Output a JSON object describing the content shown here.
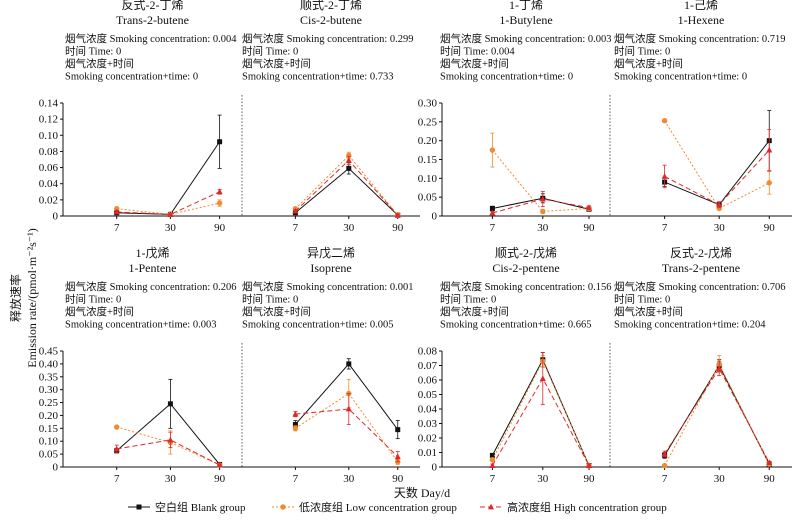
{
  "ylabel_cn": "释放速率",
  "ylabel_en": "Emission rate/(pmol·m⁻²s⁻¹)",
  "xlabel": "天数 Day/d",
  "legend": [
    {
      "label": "空白组 Blank group",
      "color": "#111111",
      "marker": "square",
      "dash": "none"
    },
    {
      "label": "低浓度组 Low concentration group",
      "color": "#f28a2e",
      "marker": "circle",
      "dash": "2,2"
    },
    {
      "label": "高浓度组 High concentration group",
      "color": "#e0282a",
      "marker": "triangle",
      "dash": "5,3"
    }
  ],
  "stats_labels": {
    "smoke": "烟气浓度 Smoking concentration:",
    "time": "时间 Time:",
    "inter_cn": "烟气浓度+时间",
    "inter_en": "Smoking concentration+time:"
  },
  "chart_data": [
    {
      "type": "line",
      "title_cn": "反式-2-丁烯",
      "title_en": "Trans-2-butene",
      "stats": {
        "smoke": "0.004",
        "time": "0",
        "inter": "0"
      },
      "categories": [
        "7",
        "30",
        "90"
      ],
      "ylim": [
        0,
        0.14
      ],
      "yticks": [
        "0",
        "0.02",
        "0.04",
        "0.06",
        "0.08",
        "0.10",
        "0.12",
        "0.14"
      ],
      "series": [
        {
          "name": "空白组 Blank group",
          "values": [
            0.004,
            0.002,
            0.092
          ],
          "err": [
            0.002,
            0.001,
            0.033
          ]
        },
        {
          "name": "低浓度组 Low concentration group",
          "values": [
            0.009,
            0.002,
            0.016
          ],
          "err": [
            0.002,
            0.001,
            0.004
          ]
        },
        {
          "name": "高浓度组 High concentration group",
          "values": [
            0.005,
            0.002,
            0.03
          ],
          "err": [
            0.002,
            0.001,
            0.003
          ]
        }
      ]
    },
    {
      "type": "line",
      "title_cn": "顺式-2-丁烯",
      "title_en": "Cis-2-butene",
      "stats": {
        "smoke": "0.299",
        "time": "0",
        "inter": "0.733"
      },
      "categories": [
        "7",
        "30",
        "90"
      ],
      "ylim": [
        0,
        0.14
      ],
      "series": [
        {
          "name": "空白组 Blank group",
          "values": [
            0.004,
            0.059,
            0.001
          ],
          "err": [
            0.002,
            0.007,
            0.001
          ]
        },
        {
          "name": "低浓度组 Low concentration group",
          "values": [
            0.009,
            0.075,
            0.001
          ],
          "err": [
            0.002,
            0.004,
            0.001
          ]
        },
        {
          "name": "高浓度组 High concentration group",
          "values": [
            0.006,
            0.069,
            0.001
          ],
          "err": [
            0.002,
            0.005,
            0.001
          ]
        }
      ]
    },
    {
      "type": "line",
      "title_cn": "1-丁烯",
      "title_en": "1-Butylene",
      "stats": {
        "smoke": "0.003",
        "time": "0.004",
        "inter": "0"
      },
      "categories": [
        "7",
        "30",
        "90"
      ],
      "ylim": [
        0,
        0.3
      ],
      "yticks": [
        "0",
        "0.05",
        "0.10",
        "0.15",
        "0.20",
        "0.25",
        "0.30"
      ],
      "series": [
        {
          "name": "空白组 Blank group",
          "values": [
            0.02,
            0.047,
            0.018
          ],
          "err": [
            0.006,
            0.012,
            0.005
          ]
        },
        {
          "name": "低浓度组 Low concentration group",
          "values": [
            0.175,
            0.012,
            0.02
          ],
          "err": [
            0.045,
            0.005,
            0.005
          ]
        },
        {
          "name": "高浓度组 High concentration group",
          "values": [
            0.008,
            0.045,
            0.022
          ],
          "err": [
            0.004,
            0.02,
            0.005
          ]
        }
      ]
    },
    {
      "type": "line",
      "title_cn": "1-己烯",
      "title_en": "1-Hexene",
      "stats": {
        "smoke": "0.719",
        "time": "0",
        "inter": "0"
      },
      "categories": [
        "7",
        "30",
        "90"
      ],
      "ylim": [
        0,
        0.3
      ],
      "series": [
        {
          "name": "空白组 Blank group",
          "values": [
            0.09,
            0.03,
            0.2
          ],
          "err": [
            0.012,
            0.005,
            0.08
          ]
        },
        {
          "name": "低浓度组 Low concentration group",
          "values": [
            0.253,
            0.02,
            0.088
          ],
          "err": [
            0.004,
            0.004,
            0.03
          ]
        },
        {
          "name": "高浓度组 High concentration group",
          "values": [
            0.105,
            0.03,
            0.175
          ],
          "err": [
            0.03,
            0.008,
            0.055
          ]
        }
      ]
    },
    {
      "type": "line",
      "title_cn": "1-戊烯",
      "title_en": "1-Pentene",
      "stats": {
        "smoke": "0.206",
        "time": "0",
        "inter": "0.003"
      },
      "categories": [
        "7",
        "30",
        "90"
      ],
      "ylim": [
        0,
        0.45
      ],
      "yticks": [
        "0",
        "0.05",
        "0.10",
        "0.15",
        "0.20",
        "0.25",
        "0.30",
        "0.35",
        "0.40",
        "0.45"
      ],
      "series": [
        {
          "name": "空白组 Blank group",
          "values": [
            0.063,
            0.245,
            0.01
          ],
          "err": [
            0.008,
            0.095,
            0.005
          ]
        },
        {
          "name": "低浓度组 Low concentration group",
          "values": [
            0.155,
            0.095,
            0.008
          ],
          "err": [
            0.005,
            0.045,
            0.003
          ]
        },
        {
          "name": "高浓度组 High concentration group",
          "values": [
            0.07,
            0.105,
            0.008
          ],
          "err": [
            0.015,
            0.03,
            0.003
          ]
        }
      ]
    },
    {
      "type": "line",
      "title_cn": "异戊二烯",
      "title_en": "Isoprene",
      "stats": {
        "smoke": "0.001",
        "time": "0",
        "inter": "0.005"
      },
      "categories": [
        "7",
        "30",
        "90"
      ],
      "ylim": [
        0,
        0.45
      ],
      "series": [
        {
          "name": "空白组 Blank group",
          "values": [
            0.165,
            0.4,
            0.145
          ],
          "err": [
            0.015,
            0.02,
            0.035
          ]
        },
        {
          "name": "低浓度组 Low concentration group",
          "values": [
            0.15,
            0.285,
            0.02
          ],
          "err": [
            0.01,
            0.055,
            0.01
          ]
        },
        {
          "name": "高浓度组 High concentration group",
          "values": [
            0.205,
            0.225,
            0.04
          ],
          "err": [
            0.01,
            0.06,
            0.02
          ]
        }
      ]
    },
    {
      "type": "line",
      "title_cn": "顺式-2-戊烯",
      "title_en": "Cis-2-pentene",
      "stats": {
        "smoke": "0.156",
        "time": "0",
        "inter": "0.665"
      },
      "categories": [
        "7",
        "30",
        "90"
      ],
      "ylim": [
        0,
        0.08
      ],
      "yticks": [
        "0",
        "0.01",
        "0.02",
        "0.03",
        "0.04",
        "0.05",
        "0.06",
        "0.07",
        "0.08"
      ],
      "series": [
        {
          "name": "空白组 Blank group",
          "values": [
            0.008,
            0.074,
            0.001
          ],
          "err": [
            0.001,
            0.005,
            0.0005
          ]
        },
        {
          "name": "低浓度组 Low concentration group",
          "values": [
            0.005,
            0.073,
            0.001
          ],
          "err": [
            0.001,
            0.004,
            0.0005
          ]
        },
        {
          "name": "高浓度组 High concentration group",
          "values": [
            0.001,
            0.061,
            0.001
          ],
          "err": [
            0.001,
            0.018,
            0.0005
          ]
        }
      ]
    },
    {
      "type": "line",
      "title_cn": "反式-2-戊烯",
      "title_en": "Trans-2-pentene",
      "stats": {
        "smoke": "0.706",
        "time": "0",
        "inter": "0.204"
      },
      "categories": [
        "7",
        "30",
        "90"
      ],
      "ylim": [
        0,
        0.08
      ],
      "series": [
        {
          "name": "空白组 Blank group",
          "values": [
            0.008,
            0.07,
            0.002
          ],
          "err": [
            0.002,
            0.004,
            0.001
          ]
        },
        {
          "name": "低浓度组 Low concentration group",
          "values": [
            0.001,
            0.071,
            0.002
          ],
          "err": [
            0.001,
            0.006,
            0.001
          ]
        },
        {
          "name": "高浓度组 High concentration group",
          "values": [
            0.009,
            0.068,
            0.003
          ],
          "err": [
            0.002,
            0.005,
            0.001
          ]
        }
      ]
    }
  ]
}
